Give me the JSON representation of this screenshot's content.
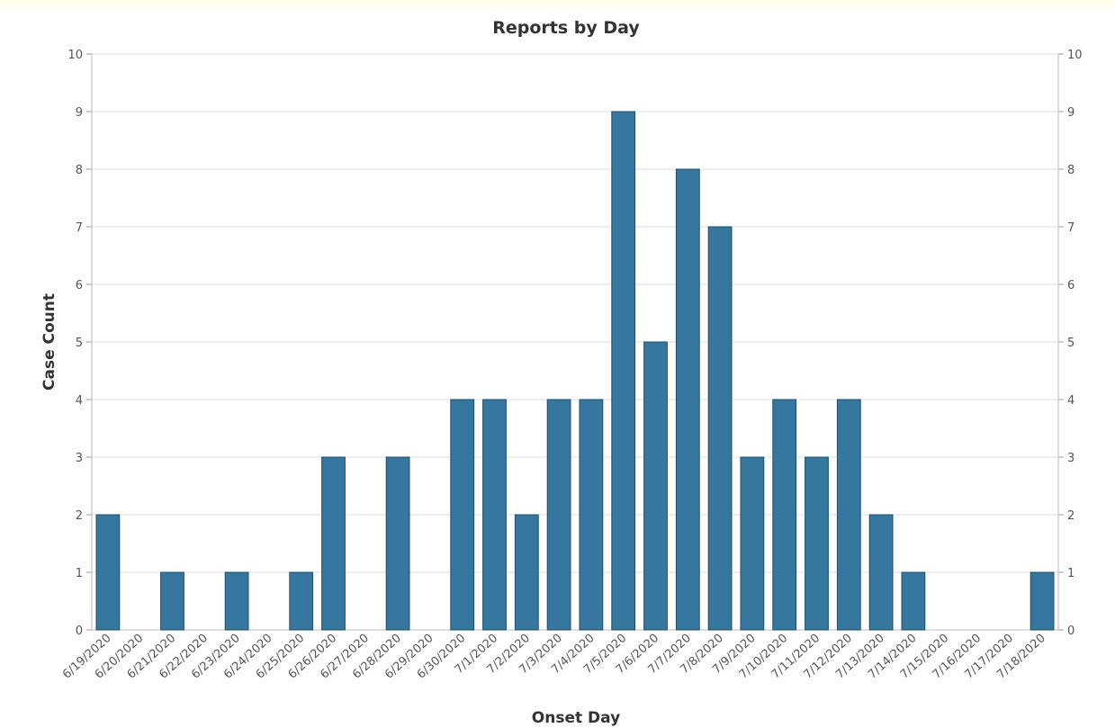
{
  "colors": {
    "bar_fill": "#35779f",
    "bar_stroke": "#1f4d6e",
    "grid": "#dddddd"
  },
  "chart_data": {
    "type": "bar",
    "title": "Reports by Day",
    "xlabel": "Onset Day",
    "ylabel": "Case Count",
    "ylim": [
      0,
      10
    ],
    "y_ticks": [
      0,
      1,
      2,
      3,
      4,
      5,
      6,
      7,
      8,
      9,
      10
    ],
    "secondary_y_axis": true,
    "grid": true,
    "categories": [
      "6/19/2020",
      "6/20/2020",
      "6/21/2020",
      "6/22/2020",
      "6/23/2020",
      "6/24/2020",
      "6/25/2020",
      "6/26/2020",
      "6/27/2020",
      "6/28/2020",
      "6/29/2020",
      "6/30/2020",
      "7/1/2020",
      "7/2/2020",
      "7/3/2020",
      "7/4/2020",
      "7/5/2020",
      "7/6/2020",
      "7/7/2020",
      "7/8/2020",
      "7/9/2020",
      "7/10/2020",
      "7/11/2020",
      "7/12/2020",
      "7/13/2020",
      "7/14/2020",
      "7/15/2020",
      "7/16/2020",
      "7/17/2020",
      "7/18/2020"
    ],
    "values": [
      2,
      0,
      1,
      0,
      1,
      0,
      1,
      3,
      0,
      3,
      0,
      4,
      4,
      2,
      4,
      4,
      9,
      5,
      8,
      7,
      3,
      4,
      3,
      4,
      2,
      1,
      0,
      0,
      0,
      1
    ]
  }
}
